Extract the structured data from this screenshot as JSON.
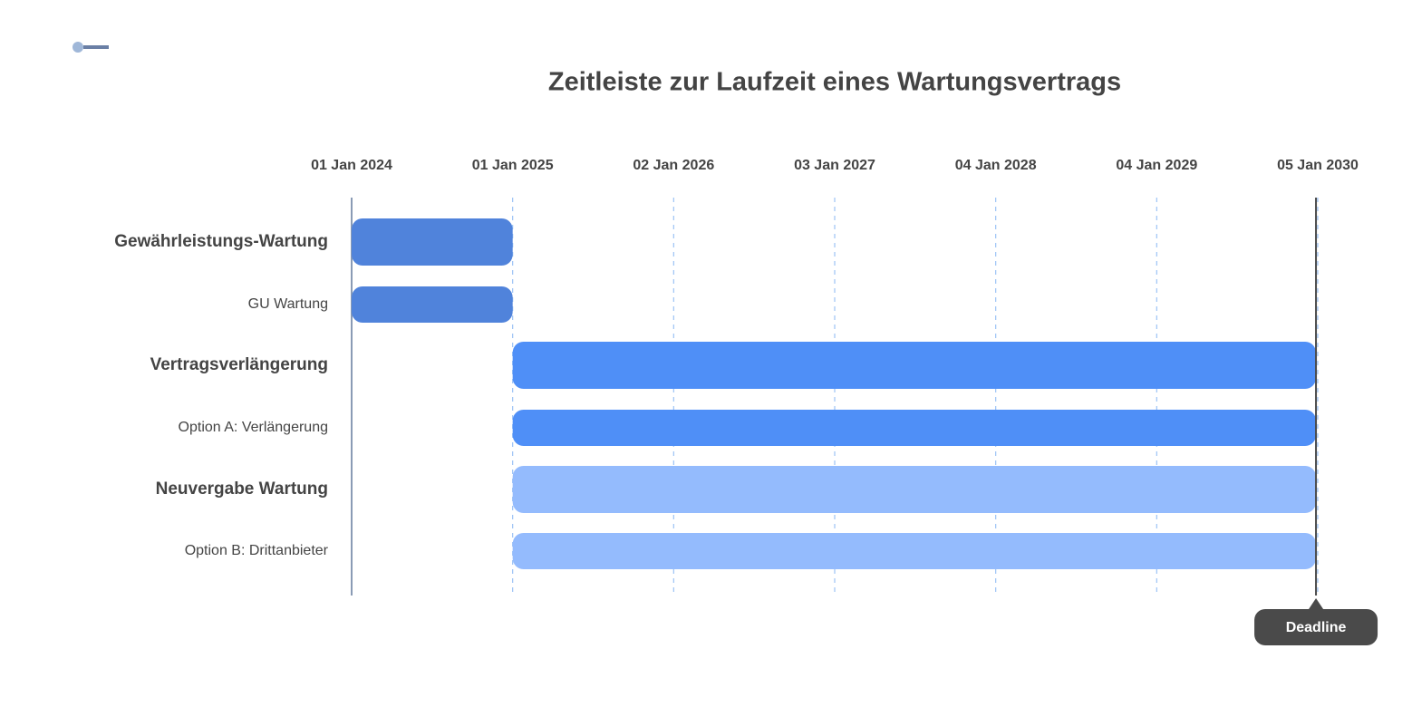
{
  "chart_data": {
    "type": "gantt",
    "title": "Zeitleiste zur Laufzeit eines Wartungsvertrags",
    "xlim": [
      "2024-01-01",
      "2030-01-05"
    ],
    "xticks": [
      {
        "value": "2024-01-01",
        "label": "01 Jan 2024"
      },
      {
        "value": "2025-01-01",
        "label": "01 Jan 2025"
      },
      {
        "value": "2026-01-02",
        "label": "02 Jan 2026"
      },
      {
        "value": "2027-01-03",
        "label": "03 Jan 2027"
      },
      {
        "value": "2028-01-04",
        "label": "04 Jan 2028"
      },
      {
        "value": "2029-01-04",
        "label": "04 Jan 2029"
      },
      {
        "value": "2030-01-05",
        "label": "05 Jan 2030"
      }
    ],
    "grid": true,
    "tasks": [
      {
        "name": "Gewährleistungs-Wartung",
        "start": "2024-01-01",
        "end": "2025-01-01",
        "color": "#5083db",
        "bold": true
      },
      {
        "name": "GU Wartung",
        "start": "2024-01-01",
        "end": "2025-01-01",
        "color": "#5083db",
        "bold": false
      },
      {
        "name": "Vertragsverlängerung",
        "start": "2025-01-01",
        "end": "2030-01-01",
        "color": "#4f8ff7",
        "bold": true
      },
      {
        "name": "Option A: Verlängerung",
        "start": "2025-01-01",
        "end": "2030-01-01",
        "color": "#4f8ff7",
        "bold": false
      },
      {
        "name": "Neuvergabe Wartung",
        "start": "2025-01-01",
        "end": "2030-01-01",
        "color": "#94bbfd",
        "bold": true
      },
      {
        "name": "Option B: Drittanbieter",
        "start": "2025-01-01",
        "end": "2030-01-01",
        "color": "#94bbfd",
        "bold": false
      }
    ],
    "marker": {
      "label": "Deadline",
      "date": "2030-01-01",
      "color": "#4a4a4a"
    }
  }
}
